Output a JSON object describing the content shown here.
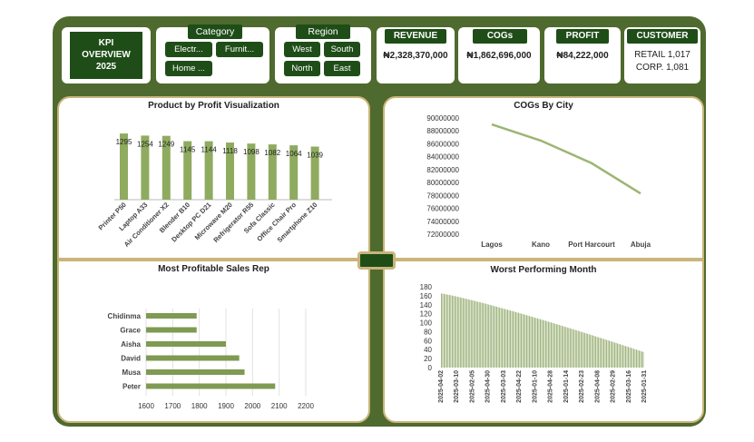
{
  "kpi_title": [
    "KPI",
    "OVERVIEW",
    "2025"
  ],
  "category": {
    "title": "Category",
    "options": [
      "Electr...",
      "Furnit...",
      "Home ..."
    ]
  },
  "region": {
    "title": "Region",
    "options": [
      "West",
      "South",
      "North",
      "East"
    ]
  },
  "revenue": {
    "title": "REVENUE",
    "value": "₦2,328,370,000"
  },
  "cogs": {
    "title": "COGs",
    "value": "₦1,862,696,000"
  },
  "profit": {
    "title": "PROFIT",
    "value": "₦84,222,000"
  },
  "customer": {
    "title": "CUSTOMER",
    "retail": "RETAIL 1,017",
    "corp": "CORP. 1,081"
  },
  "colors": {
    "dark_green": "#1f4d18",
    "bar_green": "#8fab5f",
    "frame_green": "#4f6a2e",
    "panel_border": "#c9b47a"
  },
  "chart_data": [
    {
      "type": "bar",
      "title": "Product by Profit Visualization",
      "categories": [
        "Printer P50",
        "Laptop A33",
        "Air Conditioner X2",
        "Blender B10",
        "Desktop PC D21",
        "Microwave M20",
        "Refrigerator R55",
        "Sofa Classic",
        "Office Chair Pro",
        "Smartphone Z10"
      ],
      "values": [
        1295,
        1254,
        1249,
        1145,
        1144,
        1118,
        1098,
        1082,
        1064,
        1039
      ],
      "data_labels": [
        "1295",
        "1254",
        "1249",
        "1145",
        "1144",
        "1118",
        "1098",
        "1082",
        "1064",
        "1039"
      ],
      "ylim": [
        0,
        1350
      ]
    },
    {
      "type": "line",
      "title": "COGs By City",
      "categories": [
        "Lagos",
        "Kano",
        "Port Harcourt",
        "Abuja"
      ],
      "values": [
        89000000,
        86500000,
        83000000,
        78300000
      ],
      "ylim": [
        72000000,
        90000000
      ],
      "yticks": [
        90000000,
        88000000,
        86000000,
        84000000,
        82000000,
        80000000,
        78000000,
        76000000,
        74000000,
        72000000
      ],
      "ytick_labels": [
        "90000000",
        "88000000",
        "86000000",
        "84000000",
        "82000000",
        "80000000",
        "78000000",
        "76000000",
        "74000000",
        "72000000"
      ]
    },
    {
      "type": "bar",
      "orientation": "horizontal",
      "title": "Most Profitable Sales Rep",
      "categories": [
        "Chidinma",
        "Grace",
        "Aisha",
        "David",
        "Musa",
        "Peter"
      ],
      "values": [
        1790,
        1790,
        1900,
        1950,
        1970,
        2085
      ],
      "xlim": [
        1600,
        2200
      ],
      "xticks": [
        1600,
        1700,
        1800,
        1900,
        2000,
        2100,
        2200
      ],
      "xtick_labels": [
        "1600",
        "1700",
        "1800",
        "1900",
        "2000",
        "2100",
        "2200"
      ]
    },
    {
      "type": "bar",
      "title": "Worst Performing Month",
      "x_tick_labels": [
        "2025-04-02",
        "2025-03-10",
        "2025-02-05",
        "2025-04-30",
        "2025-03-03",
        "2025-04-22",
        "2025-01-10",
        "2025-04-28",
        "2025-01-14",
        "2025-02-23",
        "2025-04-08",
        "2025-02-29",
        "2025-03-16",
        "2025-01-31"
      ],
      "start_value": 165,
      "end_value": 35,
      "bar_count": 150,
      "ylim": [
        0,
        180
      ],
      "yticks": [
        0,
        20,
        40,
        60,
        80,
        100,
        120,
        140,
        160,
        180
      ],
      "ytick_labels": [
        "0",
        "20",
        "40",
        "60",
        "80",
        "100",
        "120",
        "140",
        "160",
        "180"
      ]
    }
  ]
}
